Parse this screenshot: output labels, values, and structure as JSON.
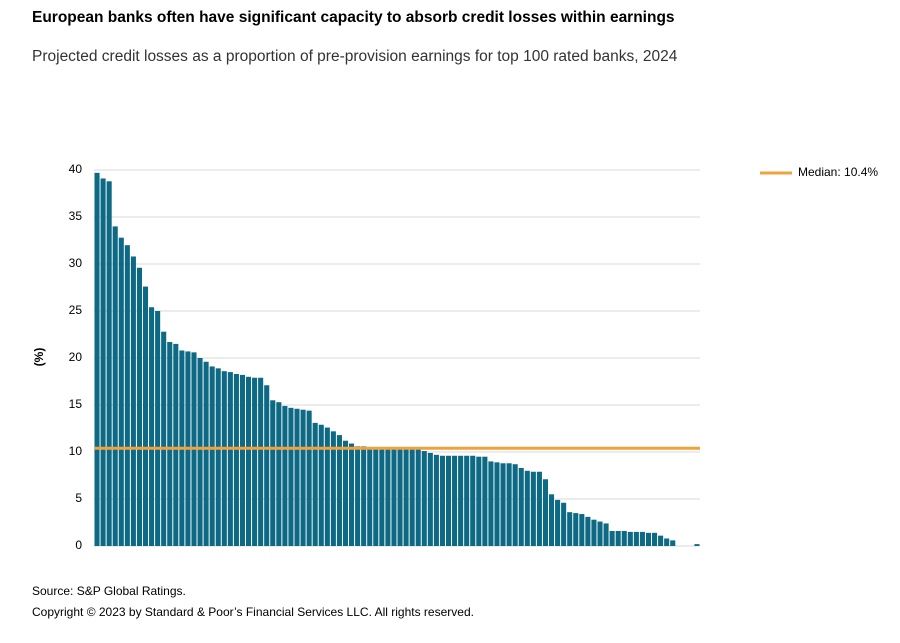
{
  "chart_data": {
    "type": "bar",
    "title": "European banks often have significant capacity to absorb credit losses within earnings",
    "subtitle": "Projected credit losses as a proportion of pre-provision earnings for top 100 rated banks, 2024",
    "y_label": "(%)",
    "source": "Source: S&P Global Ratings.",
    "copyright": "Copyright © 2023 by Standard & Poor’s Financial Services LLC. All rights reserved.",
    "categories": [
      null,
      null,
      null,
      null,
      null,
      null,
      null,
      null,
      null,
      null,
      null,
      null,
      null,
      null,
      null,
      null,
      null,
      null,
      null,
      null,
      null,
      null,
      null,
      null,
      null,
      null,
      null,
      null,
      null,
      null,
      null,
      null,
      null,
      null,
      null,
      null,
      null,
      null,
      null,
      null,
      null,
      null,
      null,
      null,
      null,
      null,
      null,
      null,
      null,
      null,
      null,
      null,
      null,
      null,
      null,
      null,
      null,
      null,
      null,
      null,
      null,
      null,
      null,
      null,
      null,
      null,
      null,
      null,
      null,
      null,
      null,
      null,
      null,
      null,
      null,
      null,
      null,
      null,
      null,
      null,
      null,
      null,
      null,
      null,
      null,
      null,
      null,
      null,
      null,
      null,
      null,
      null,
      null,
      null,
      null,
      null,
      null,
      null,
      null,
      null
    ],
    "values": [
      39.7,
      39.1,
      38.8,
      34.0,
      32.8,
      32.0,
      30.8,
      29.6,
      27.6,
      25.4,
      25.0,
      22.8,
      21.7,
      21.5,
      20.8,
      20.7,
      20.6,
      20.0,
      19.6,
      19.1,
      18.9,
      18.6,
      18.5,
      18.3,
      18.2,
      18.0,
      17.9,
      17.9,
      17.1,
      15.5,
      15.3,
      14.9,
      14.7,
      14.6,
      14.5,
      14.4,
      13.1,
      12.9,
      12.6,
      12.2,
      11.8,
      11.2,
      10.9,
      10.6,
      10.6,
      10.5,
      10.4,
      10.4,
      10.4,
      10.4,
      10.4,
      10.4,
      10.3,
      10.3,
      10.1,
      9.9,
      9.7,
      9.6,
      9.6,
      9.6,
      9.6,
      9.6,
      9.6,
      9.5,
      9.5,
      9.0,
      8.9,
      8.8,
      8.8,
      8.7,
      8.3,
      8.0,
      7.9,
      7.9,
      7.1,
      5.5,
      4.9,
      4.6,
      3.6,
      3.5,
      3.4,
      3.1,
      2.8,
      2.6,
      2.4,
      1.6,
      1.6,
      1.6,
      1.5,
      1.5,
      1.5,
      1.4,
      1.4,
      1.1,
      0.8,
      0.6,
      0,
      0,
      0,
      0.2
    ],
    "color": "#0e6a84",
    "reference_line": {
      "value": 10.4,
      "label": "Median: 10.4%",
      "color": "#f2a23c"
    },
    "ylim": [
      0,
      40
    ],
    "yticks": [
      0,
      5,
      10,
      15,
      20,
      25,
      30,
      35,
      40
    ],
    "grid": true
  }
}
